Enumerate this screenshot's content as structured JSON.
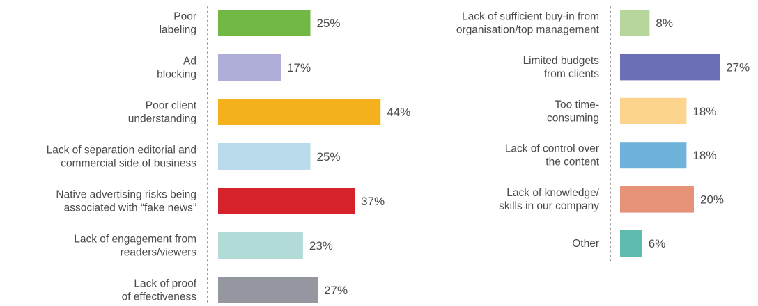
{
  "chart_data": [
    {
      "type": "bar",
      "orientation": "horizontal",
      "unit": "%",
      "categories": [
        "Poor\nlabeling",
        "Ad\nblocking",
        "Poor client\nunderstanding",
        "Lack of separation editorial and\ncommercial side of business",
        "Native advertising risks being\nassociated with “fake news”",
        "Lack of engagement from\nreaders/viewers",
        "Lack of proof\nof effectiveness"
      ],
      "values": [
        25,
        17,
        44,
        25,
        37,
        23,
        27
      ],
      "value_labels": [
        "25%",
        "17%",
        "44%",
        "25%",
        "37%",
        "23%",
        "27%"
      ],
      "colors": [
        "#72b844",
        "#aeaed8",
        "#f4b11c",
        "#badbec",
        "#d6222b",
        "#b2dad6",
        "#9597a0"
      ]
    },
    {
      "type": "bar",
      "orientation": "horizontal",
      "unit": "%",
      "categories": [
        "Lack of sufficient buy-in from\norganisation/top management",
        "Limited budgets\nfrom clients",
        "Too time-\nconsuming",
        "Lack of control over\nthe content",
        "Lack of knowledge/\nskills in our company",
        "Other"
      ],
      "values": [
        8,
        27,
        18,
        18,
        20,
        6
      ],
      "value_labels": [
        "8%",
        "27%",
        "18%",
        "18%",
        "20%",
        "6%"
      ],
      "colors": [
        "#b6d69b",
        "#6b70b6",
        "#fcd48d",
        "#6fb2da",
        "#e6937a",
        "#5dbcae"
      ]
    }
  ]
}
